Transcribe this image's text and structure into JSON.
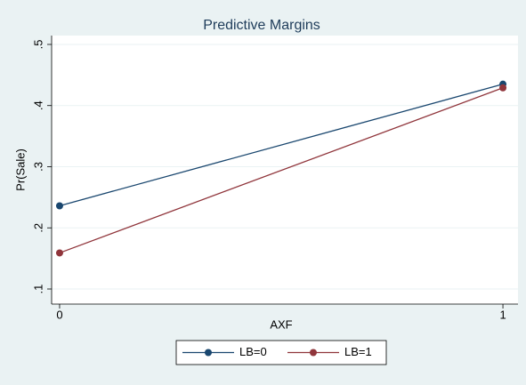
{
  "chart_data": {
    "type": "line",
    "title": "Predictive Margins",
    "x_label": "AXF",
    "y_label": "Pr(Sale)",
    "x": [
      0,
      1
    ],
    "series": [
      {
        "name": "LB=0",
        "color": "#1a476f",
        "values": [
          0.236,
          0.435
        ]
      },
      {
        "name": "LB=1",
        "color": "#90353b",
        "values": [
          0.159,
          0.429
        ]
      }
    ],
    "xlim": [
      -0.018,
      1.034
    ],
    "xticks": [
      0,
      1
    ],
    "ylim": [
      0.0753,
      0.5145
    ],
    "yticks": [
      {
        "value": 0.1,
        "label": ".1"
      },
      {
        "value": 0.2,
        "label": ".2"
      },
      {
        "value": 0.3,
        "label": ".3"
      },
      {
        "value": 0.4,
        "label": ".4"
      },
      {
        "value": 0.5,
        "label": ".5"
      }
    ],
    "grid": true,
    "legend": "bottom"
  }
}
